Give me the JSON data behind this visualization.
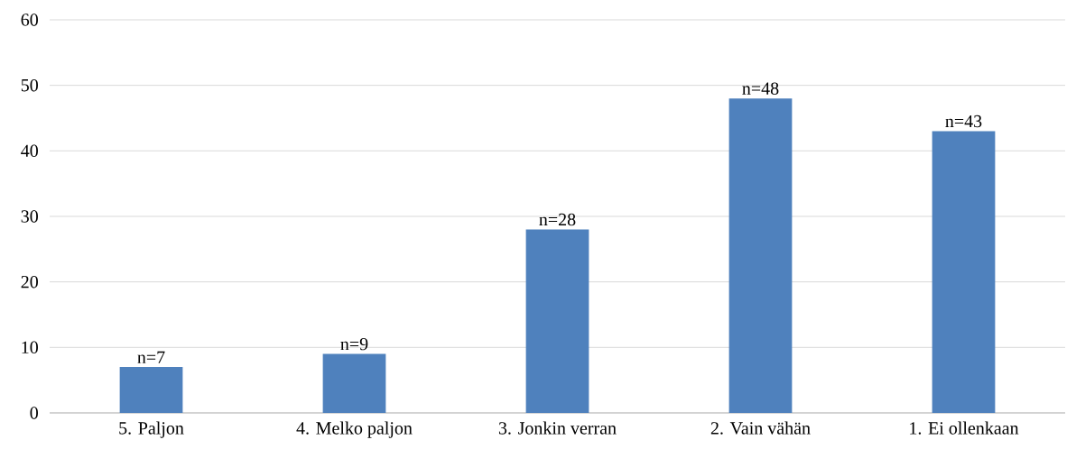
{
  "chart_data": {
    "type": "bar",
    "categories": [
      "5. Paljon",
      "4. Melko paljon",
      "3. Jonkin verran",
      "2. Vain vähän",
      "1. Ei ollenkaan"
    ],
    "values": [
      7,
      9,
      28,
      48,
      43
    ],
    "color": "#4f81bd",
    "ylim": [
      0,
      60
    ],
    "yticks": [
      0,
      10,
      20,
      30,
      40,
      50,
      60
    ],
    "grid": "y",
    "value_labels": [
      "n=7",
      "n=9",
      "n=28",
      "n=48",
      "n=43"
    ]
  }
}
